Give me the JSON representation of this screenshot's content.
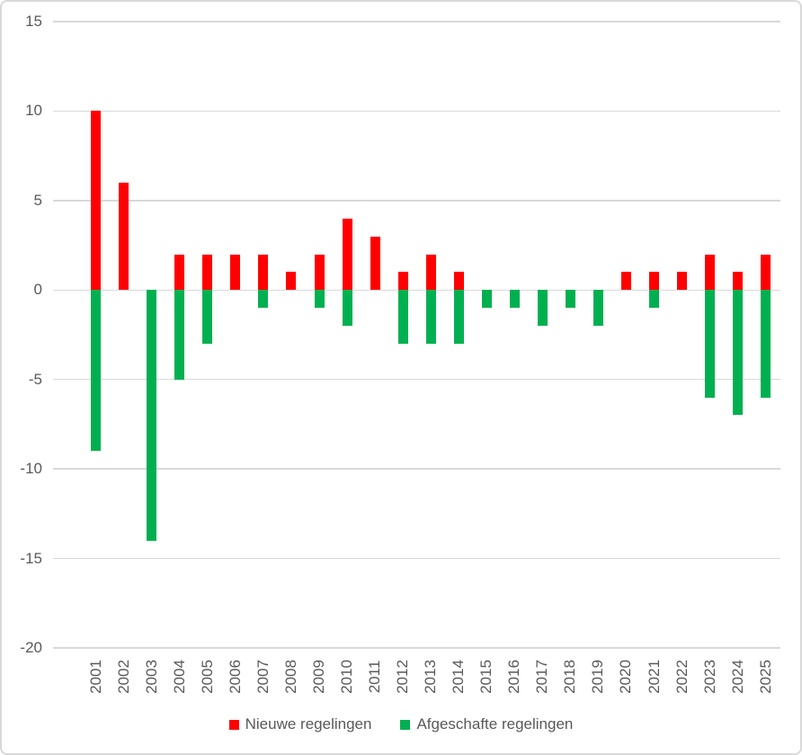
{
  "chart_data": {
    "type": "bar",
    "title": "",
    "xlabel": "",
    "ylabel": "",
    "categories": [
      "2001",
      "2002",
      "2003",
      "2004",
      "2005",
      "2006",
      "2007",
      "2008",
      "2009",
      "2010",
      "2011",
      "2012",
      "2013",
      "2014",
      "2015",
      "2016",
      "2017",
      "2018",
      "2019",
      "2020",
      "2021",
      "2022",
      "2023",
      "2024",
      "2025"
    ],
    "series": [
      {
        "name": "Nieuwe regelingen",
        "color": "#ff0000",
        "values": [
          10,
          6,
          0,
          2,
          2,
          2,
          2,
          1,
          2,
          4,
          3,
          1,
          2,
          1,
          0,
          0,
          0,
          0,
          0,
          1,
          1,
          1,
          2,
          1,
          2
        ]
      },
      {
        "name": "Afgeschafte regelingen",
        "color": "#00b050",
        "values": [
          -9,
          0,
          -14,
          -5,
          -3,
          0,
          -1,
          0,
          -1,
          -2,
          0,
          -3,
          -3,
          -3,
          -1,
          -1,
          -2,
          -1,
          -2,
          0,
          -1,
          0,
          -6,
          -7,
          -6
        ]
      }
    ],
    "ylim": [
      -20,
      15
    ],
    "yticks": [
      15,
      10,
      5,
      0,
      -5,
      -10,
      -15,
      -20
    ],
    "grid": true,
    "legend_position": "bottom",
    "axis_text_color": "#595959",
    "gridline_color": "#d9d9d9",
    "background_color": "#ffffff"
  }
}
